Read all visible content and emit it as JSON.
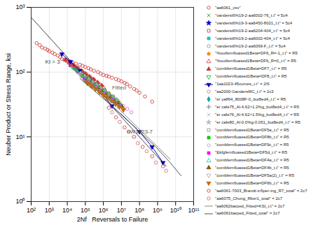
{
  "chart_data": {
    "type": "scatter",
    "xlabel": "2Nf   Reversals to Failure",
    "ylabel": "Neuber Product or Stress Range, ksi",
    "log": true,
    "grid": true,
    "legend": "right",
    "xlim": [
      100,
      100000000000
    ],
    "ylim": [
      1,
      1000
    ],
    "xticks": [
      {
        "value": 100,
        "label": "10²"
      },
      {
        "value": 1000,
        "label": "10³"
      },
      {
        "value": 10000,
        "label": "10⁴"
      },
      {
        "value": 100000,
        "label": "10⁵"
      },
      {
        "value": 1000000,
        "label": "10⁶"
      },
      {
        "value": 10000000,
        "label": "10⁷"
      },
      {
        "value": 100000000,
        "label": "10⁸"
      },
      {
        "value": 1000000000,
        "label": "10⁹"
      },
      {
        "value": 10000000000,
        "label": "10¹⁰"
      },
      {
        "value": 100000000000,
        "label": "10¹¹"
      }
    ],
    "yticks": [
      {
        "value": 1,
        "label": "10⁰"
      },
      {
        "value": 10,
        "label": "10¹"
      },
      {
        "value": 100,
        "label": "10²"
      },
      {
        "value": 1000,
        "label": "10³"
      }
    ],
    "reference_line": {
      "x": [
        100,
        3000000000.0
      ],
      "values": [
        700,
        3.5
      ],
      "color": "#444444"
    },
    "annotations": [
      {
        "text": "Kt = 3",
        "x": 600,
        "y": 130,
        "color": "#444444"
      },
      {
        "text": "Fitted",
        "x": 3000000.0,
        "y": 52,
        "color": "#666666"
      },
      {
        "text": "IIW1823-7",
        "x": 20000000.0,
        "y": 11,
        "color": "#555555"
      }
    ],
    "series": [
      {
        "name": "\"aa6061_csv\"",
        "marker": "circle-open",
        "color": "#cc3333",
        "x": [
          200,
          300,
          400,
          600,
          800,
          1000,
          1500,
          2000,
          3000,
          4000,
          5000,
          7000,
          10000,
          15000,
          20000,
          30000,
          50000,
          70000,
          100000,
          150000,
          200000,
          300000,
          500000,
          700000,
          1000000,
          1500000,
          2000000,
          3000000,
          5000000,
          7000000,
          10000000,
          15000000,
          20000000,
          30000000,
          50000000,
          70000000,
          100000000,
          200000000,
          500000000
        ],
        "values": [
          280,
          260,
          240,
          230,
          220,
          210,
          200,
          190,
          180,
          170,
          160,
          155,
          150,
          145,
          140,
          135,
          130,
          125,
          120,
          115,
          110,
          105,
          100,
          95,
          90,
          88,
          85,
          82,
          78,
          75,
          72,
          68,
          65,
          60,
          55,
          52,
          48,
          42,
          35
        ]
      },
      {
        "name": "\"vanderst6%19-2-aa6002-76_t.t\" = 5c4",
        "marker": "x",
        "color": "#00aa00",
        "x": [
          20000,
          30000,
          50000,
          80000,
          120000,
          200000,
          350000,
          600000,
          1000000,
          1800000
        ],
        "values": [
          120,
          110,
          100,
          90,
          82,
          75,
          65,
          58,
          50,
          44
        ]
      },
      {
        "name": "\"vanderst6%19-3-aa6450-8021_t.t\" = 5c4",
        "marker": "star",
        "color": "#0000cc",
        "x": [
          15000,
          25000,
          40000,
          65000,
          100000,
          180000,
          300000,
          500000,
          900000
        ],
        "values": [
          130,
          118,
          108,
          98,
          88,
          78,
          68,
          60,
          52
        ]
      },
      {
        "name": "\"vanderst6%19-2-aa6204-404_t.t\" = 5c4",
        "marker": "square-open",
        "color": "#cc3333",
        "x": [
          18000,
          28000,
          45000,
          70000,
          110000,
          190000,
          320000,
          530000,
          900000,
          1500000
        ],
        "values": [
          125,
          112,
          102,
          92,
          83,
          73,
          64,
          56,
          49,
          43
        ]
      },
      {
        "name": "\"vanderst6%19-2-aa6002-404_t.t\" = 5c4",
        "marker": "square",
        "color": "#00cccc",
        "x": [
          22000,
          35000,
          55000,
          85000,
          130000,
          220000,
          370000,
          620000,
          1050000,
          1750000
        ],
        "values": [
          118,
          108,
          97,
          87,
          78,
          69,
          60,
          53,
          46,
          40
        ]
      },
      {
        "name": "\"vanderst6%19-2-aa6069-F_t.t\" = 5c4",
        "marker": "circle-open",
        "color": "#888888",
        "x": [
          25000,
          40000,
          65000,
          100000,
          160000,
          260000,
          430000,
          720000,
          1200000,
          2000000
        ],
        "values": [
          115,
          104,
          94,
          84,
          75,
          66,
          58,
          51,
          44,
          38
        ]
      },
      {
        "name": "\"%outfern6uased1Beta=DF6_R=-1_t.t\" = R5",
        "marker": "circle",
        "color": "#ff8800",
        "x": [
          12000,
          20000,
          33000,
          55000,
          90000,
          150000,
          250000,
          420000,
          700000,
          1200000,
          2000000,
          3500000
        ],
        "values": [
          140,
          126,
          114,
          103,
          93,
          84,
          75,
          67,
          60,
          53,
          47,
          42
        ]
      },
      {
        "name": "\"%outfern6uased1Beta=DF6_R=0_t.t\" = R5",
        "marker": "triangle-open",
        "color": "#cc3333",
        "x": [
          10000,
          17000,
          28000,
          46000,
          75000,
          125000,
          210000,
          350000,
          590000,
          1000000
        ],
        "values": [
          148,
          134,
          121,
          110,
          100,
          90,
          81,
          73,
          65,
          58
        ]
      },
      {
        "name": "\"combfern6uased1Beta=DF7_t.t\" = R5",
        "marker": "triangle",
        "color": "#cc3333",
        "x": [
          8000,
          13000,
          22000,
          37000,
          62000,
          103000,
          172000,
          288000,
          482000,
          806000
        ],
        "values": [
          155,
          140,
          127,
          115,
          104,
          94,
          85,
          77,
          69,
          62
        ]
      },
      {
        "name": "\"combfern6uased1Beta=DF8_t.t\" = R5",
        "marker": "triangle-down-open",
        "color": "#00aa00",
        "x": [
          30000,
          50000,
          80000,
          130000,
          210000,
          350000,
          580000,
          970000,
          1600000,
          2700000
        ],
        "values": [
          110,
          100,
          90,
          81,
          73,
          65,
          59,
          52,
          47,
          42
        ]
      },
      {
        "name": "\"1aa1023-45curves_t.t\" = 2/6",
        "type": "line",
        "marker": "triangle-down",
        "color": "#0000bb",
        "x": [
          5000,
          15000,
          50000,
          200000,
          800000,
          3000000,
          100000000.0,
          500000000.0,
          2000000000.0
        ],
        "values": [
          190,
          145,
          105,
          72,
          48,
          30,
          12,
          7,
          4
        ]
      },
      {
        "name": "\"aa2000-GandersMC_t.t\" = 2c3",
        "marker": "circle-open",
        "color": "#cc66cc",
        "x": [
          50000,
          80000,
          130000,
          210000,
          350000,
          580000,
          970000,
          1600000,
          2700000,
          4500000,
          7500000,
          12500000,
          21000000,
          35000000
        ],
        "values": [
          95,
          86,
          78,
          70,
          63,
          57,
          51,
          46,
          41,
          37,
          33,
          30,
          27,
          24
        ]
      },
      {
        "name": "\"er yaff64_8008F-0_but8ed4_t.t\" = R5",
        "marker": "diamond",
        "color": "#00aaaa",
        "x": [
          35000,
          58000,
          96000,
          160000,
          265000,
          440000,
          730000,
          1210000,
          2000000,
          3300000,
          5500000
        ],
        "values": [
          104,
          94,
          85,
          77,
          69,
          63,
          56,
          51,
          46,
          41,
          37
        ]
      },
      {
        "name": "\"er cafe75_Al-4,62>1.2%g_but8ed4_t.t\" = R5",
        "marker": "plus",
        "color": "#555555",
        "x": [
          40000,
          67000,
          112000,
          186000,
          310000,
          516000,
          860000,
          1430000,
          2380000,
          3960000
        ],
        "values": [
          100,
          90,
          82,
          74,
          67,
          60,
          54,
          49,
          44,
          39
        ]
      },
      {
        "name": "\"er cafe76_Al-4,62>1.5%g_but8ed4_t.t\" = R5",
        "marker": "x",
        "color": "#aaaaaa",
        "x": [
          45000,
          75000,
          125000,
          208000,
          347000,
          578000,
          963000,
          1605000,
          2675000,
          4458000
        ],
        "values": [
          98,
          88,
          80,
          72,
          65,
          58,
          53,
          47,
          43,
          38
        ]
      },
      {
        "name": "\"er cafe80_Al-0.0%g-0.051_but8ed4_t.t\" = R5",
        "marker": "star",
        "color": "#bbbbbb",
        "x": [
          55000,
          92000,
          153000,
          255000,
          425000,
          708000,
          1180000,
          1966000,
          3277000,
          5462000
        ],
        "values": [
          93,
          84,
          76,
          69,
          62,
          56,
          50,
          45,
          41,
          37
        ]
      },
      {
        "name": "\"combfern6uased1Beta=DF5a_t.t\" = R5",
        "marker": "square-open",
        "color": "#888888",
        "x": [
          60000,
          100000,
          167000,
          278000,
          463000,
          772000,
          1287000,
          2144000,
          3574000,
          5957000
        ],
        "values": [
          90,
          81,
          73,
          66,
          60,
          54,
          49,
          44,
          40,
          36
        ]
      },
      {
        "name": "\"combfern6uased1Beta=DF8b_t.t\" = R5",
        "marker": "square",
        "color": "#00cc00",
        "x": [
          70000,
          117000,
          195000,
          325000,
          541000,
          902000,
          1503000,
          2505000,
          4175000,
          6958000
        ],
        "values": [
          86,
          78,
          70,
          63,
          57,
          51,
          46,
          42,
          37,
          34
        ]
      },
      {
        "name": "\"combfern6uased1Beta=DF9c_t.t\" = R5",
        "marker": "circle-open",
        "color": "#aaaaaa",
        "x": [
          80000,
          133000,
          222000,
          370000,
          617000,
          1028000,
          1714000,
          2856000,
          4760000,
          7933000
        ],
        "values": [
          82,
          74,
          67,
          61,
          55,
          49,
          44,
          40,
          36,
          32
        ]
      },
      {
        "name": "\"Ekfgfern6uased1Beta=DF5d_t.t\" = R5",
        "marker": "square",
        "color": "#ff00ff",
        "x": [
          90000,
          150000,
          250000,
          416000,
          694000,
          1156000,
          1927000,
          3211000,
          5352000,
          8920000
        ],
        "values": [
          79,
          71,
          64,
          58,
          52,
          47,
          42,
          38,
          34,
          31
        ]
      },
      {
        "name": "\"combfern6uased1Beta=DF4a_t.t\" = R5",
        "marker": "triangle-open",
        "color": "#00cccc",
        "x": [
          100000,
          167000,
          278000,
          463000,
          772000,
          1287000,
          2144000,
          3574000,
          5957000,
          9929000
        ],
        "values": [
          76,
          68,
          62,
          56,
          50,
          45,
          41,
          37,
          33,
          30
        ]
      },
      {
        "name": "\"combfern6uased1Beta=DF4b_t.t\" = R5",
        "marker": "triangle",
        "color": "#885500",
        "x": [
          110000,
          183000,
          305000,
          509000,
          848000,
          1414000,
          2356000,
          3927000,
          6545000,
          10908000
        ],
        "values": [
          73,
          66,
          59,
          54,
          48,
          43,
          39,
          35,
          32,
          29
        ]
      },
      {
        "name": "\"combfern6uased1Beta=DF5a(2)_t.t\" = R5",
        "marker": "triangle-down-open",
        "color": "#aaaaaa",
        "x": [
          120000,
          200000,
          333000,
          556000,
          927000,
          1545000,
          2575000,
          4292000,
          7153000,
          11922000
        ],
        "values": [
          70,
          63,
          57,
          51,
          46,
          42,
          37,
          34,
          30,
          27
        ]
      },
      {
        "name": "\"combfern6uased1Beta=DF6b_t.t\" = R5",
        "marker": "triangle-down",
        "color": "#cc6600",
        "x": [
          130000,
          217000,
          361000,
          602000,
          1003000,
          1672000,
          2787000,
          4645000,
          7742000,
          12903000
        ],
        "values": [
          67,
          61,
          55,
          49,
          44,
          40,
          36,
          32,
          29,
          26
        ]
      },
      {
        "name": "\"aa6061-7003_Brandt-in5per-ing_R7_total\" = 2c7",
        "marker": "circle-open",
        "color": "#cc3333",
        "x": [
          2000000,
          5000000,
          15000000,
          50000000,
          150000000,
          500000000,
          2000000000
        ],
        "values": [
          28,
          20,
          14,
          10,
          7,
          5,
          3.5
        ]
      },
      {
        "name": "\"aa6075_Chung_Rber1_total\" = 2c7",
        "marker": "circle-open",
        "color": "#cc6666",
        "x": [
          3000000,
          8000000,
          25000000,
          80000000,
          250000000,
          800000000,
          3000000000
        ],
        "values": [
          24,
          17,
          12,
          8,
          6,
          4,
          3
        ]
      },
      {
        "name": "\"aa6062barped_Fitted=KSI_t.t\" = 2c7",
        "type": "line",
        "marker": "none",
        "color": "#888888",
        "x": [
          10000,
          50000,
          300000,
          2000000,
          15000000,
          100000000,
          800000000,
          5000000000
        ],
        "values": [
          140,
          95,
          62,
          38,
          22,
          13,
          7.5,
          4.5
        ]
      },
      {
        "name": "\"aa6061barped_Fitted_total\" = 2c7",
        "type": "line",
        "marker": "none",
        "color": "#555555",
        "x": [
          50000,
          300000,
          2000000,
          15000000,
          100000000,
          800000000,
          5000000000,
          20000000000.0
        ],
        "values": [
          80,
          52,
          33,
          20,
          12,
          7,
          4,
          2.5
        ]
      }
    ]
  }
}
